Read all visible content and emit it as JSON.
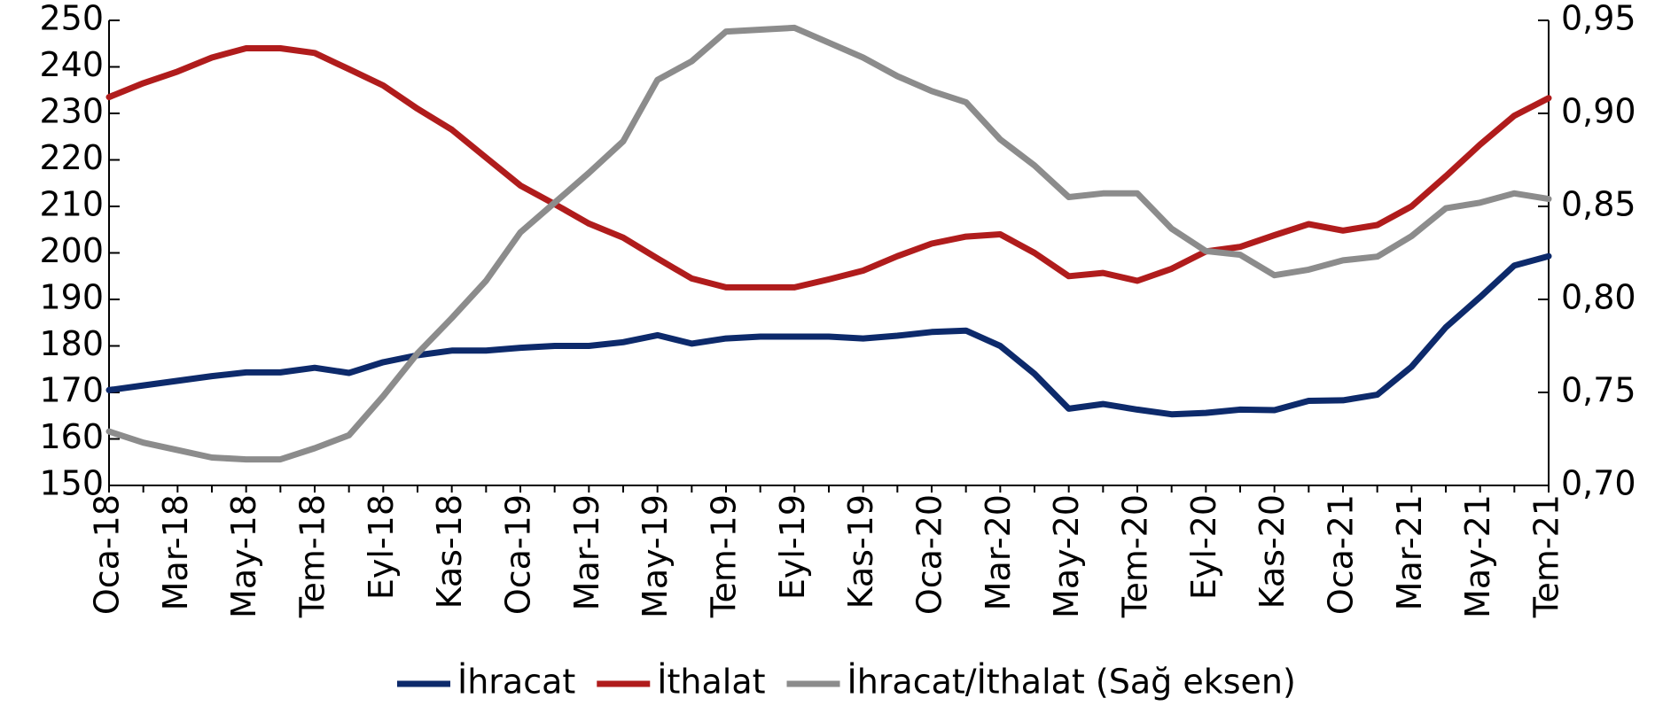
{
  "chart_data": {
    "type": "line",
    "categories": [
      "Oca-18",
      null,
      "Mar-18",
      null,
      "May-18",
      null,
      "Tem-18",
      null,
      "Eyl-18",
      null,
      "Kas-18",
      null,
      "Oca-19",
      null,
      "Mar-19",
      null,
      "May-19",
      null,
      "Tem-19",
      null,
      "Eyl-19",
      null,
      "Kas-19",
      null,
      "Oca-20",
      null,
      "Mar-20",
      null,
      "May-20",
      null,
      "Tem-20",
      null,
      "Eyl-20",
      null,
      "Kas-20",
      null,
      "Oca-21",
      null,
      "Mar-21",
      null,
      "May-21",
      null,
      "Tem-21"
    ],
    "series": [
      {
        "name": "İhracat",
        "color": "#0d2a6b",
        "values": [
          170.5,
          171.5,
          172.5,
          173.5,
          174.3,
          174.3,
          175.3,
          174.2,
          176.5,
          178,
          179,
          179,
          179.6,
          180,
          180,
          180.8,
          182.3,
          180.5,
          181.6,
          182,
          182,
          182,
          181.6,
          182.2,
          183,
          183.3,
          180,
          174,
          166.5,
          167.5,
          166.3,
          165.3,
          165.6,
          166.3,
          166.2,
          168.2,
          168.3,
          169.5,
          175.5,
          184,
          190.5,
          197.3,
          199.3
        ]
      },
      {
        "name": "İthalat",
        "color": "#b01c1c",
        "values": [
          233.5,
          236.5,
          239,
          242,
          244,
          244,
          243,
          239.5,
          236,
          231,
          226.5,
          220.5,
          214.5,
          210.5,
          206.3,
          203.3,
          198.8,
          194.5,
          192.6,
          192.6,
          192.6,
          194.3,
          196.2,
          199.3,
          202,
          203.5,
          204,
          200,
          195,
          195.7,
          194,
          196.6,
          200.3,
          201.3,
          203.8,
          206.2,
          204.8,
          206,
          210,
          216.5,
          223.3,
          229.5,
          233.3
        ]
      },
      {
        "name": "İhracat/İthalat (Sağ eksen)",
        "color": "#8c8c8c",
        "axis": "y2",
        "values": [
          0.729,
          0.723,
          0.719,
          0.715,
          0.714,
          0.714,
          0.72,
          0.727,
          0.748,
          0.771,
          0.79,
          0.81,
          0.836,
          0.852,
          0.868,
          0.885,
          0.918,
          0.928,
          0.944,
          0.945,
          0.946,
          0.938,
          0.93,
          0.92,
          0.912,
          0.906,
          0.886,
          0.872,
          0.855,
          0.857,
          0.857,
          0.838,
          0.826,
          0.824,
          0.813,
          0.816,
          0.821,
          0.823,
          0.834,
          0.849,
          0.852,
          0.857,
          0.854
        ]
      }
    ],
    "ylim": [
      150,
      250
    ],
    "yticks": [
      150,
      160,
      170,
      180,
      190,
      200,
      210,
      220,
      230,
      240,
      250
    ],
    "y2lim": [
      0.7,
      0.95
    ],
    "y2ticks": [
      {
        "value": 0.7,
        "label": "0,70"
      },
      {
        "value": 0.75,
        "label": "0,75"
      },
      {
        "value": 0.8,
        "label": "0,80"
      },
      {
        "value": 0.85,
        "label": "0,85"
      },
      {
        "value": 0.9,
        "label": "0,90"
      },
      {
        "value": 0.95,
        "label": "0,95"
      }
    ],
    "legend": "bottom"
  }
}
